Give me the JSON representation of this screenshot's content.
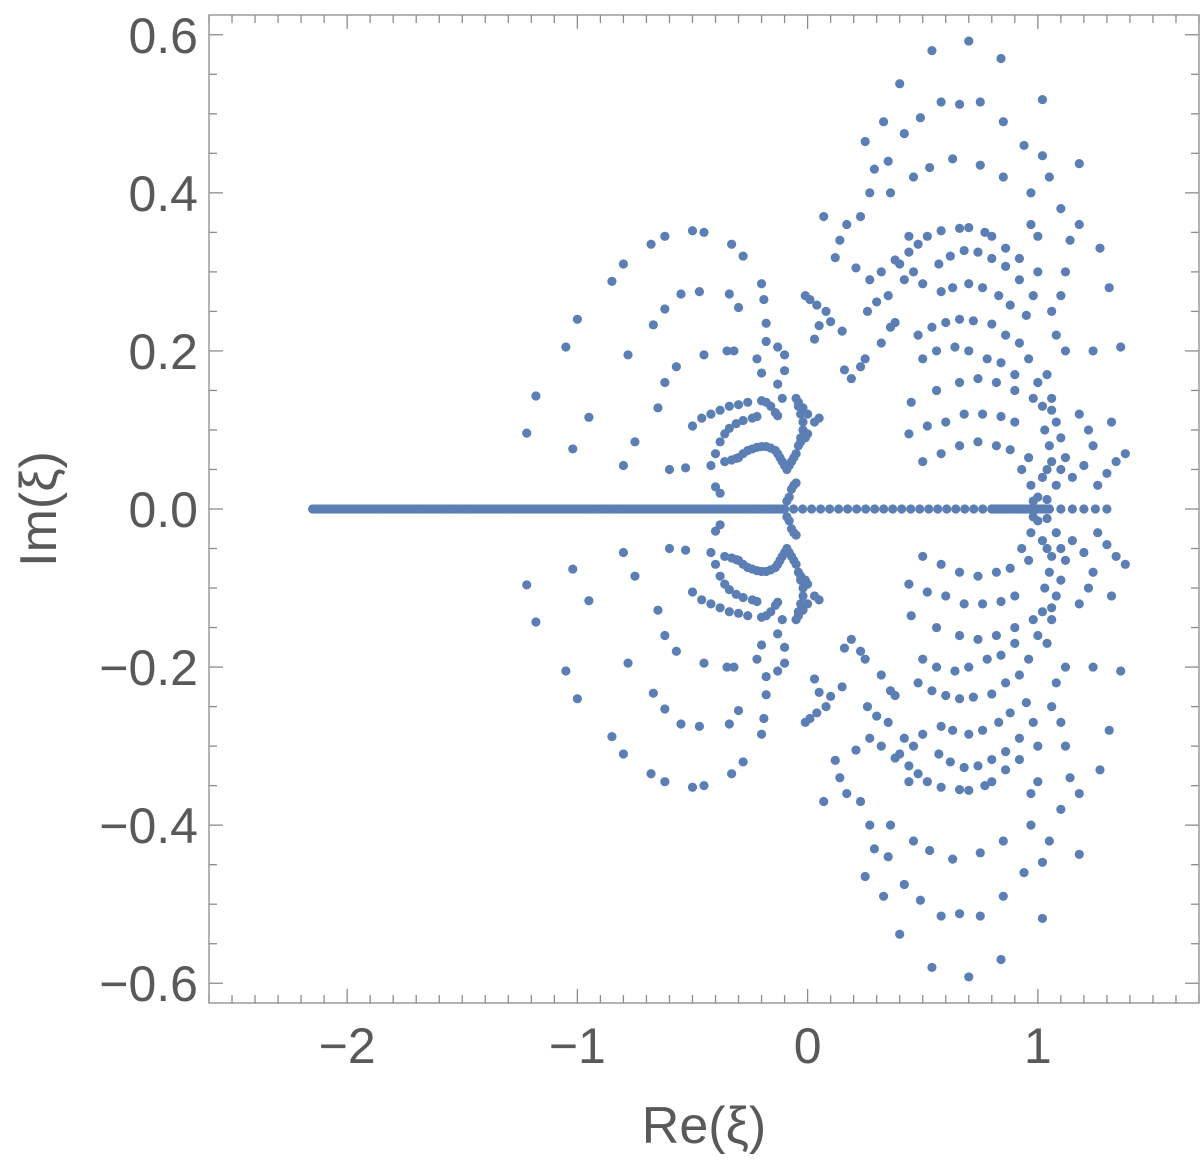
{
  "chart_data": {
    "type": "scatter",
    "xlabel": "Re(ξ)",
    "ylabel": "Im(ξ)",
    "xlim": [
      -2.6,
      1.7
    ],
    "ylim": [
      -0.625,
      0.625
    ],
    "xticks": [
      -2,
      -1,
      0,
      1
    ],
    "xtick_labels": [
      "−2",
      "−1",
      "0",
      "1"
    ],
    "yticks": [
      -0.6,
      -0.4,
      -0.2,
      0.0,
      0.2,
      0.4,
      0.6
    ],
    "ytick_labels": [
      "−0.6",
      "−0.4",
      "−0.2",
      "0.0",
      "0.2",
      "0.4",
      "0.6"
    ],
    "grid": false,
    "legend": false,
    "point_color": "#5b7fb5",
    "real_axis_points": {
      "dense_from": -2.15,
      "dense_to": -0.1,
      "dense_count": 150,
      "sparse_from": -0.1,
      "sparse_to": 0.8,
      "sparse_count": 24,
      "dense2_from": 0.8,
      "dense2_to": 1.05,
      "dense2_count": 26,
      "tail_from": 1.05,
      "tail_to": 1.3,
      "tail_count": 6
    },
    "upper_points": [
      [
        -1.22,
        0.096
      ],
      [
        -1.18,
        0.143
      ],
      [
        -1.05,
        0.205
      ],
      [
        -1.0,
        0.24
      ],
      [
        -0.95,
        0.116
      ],
      [
        -1.02,
        0.076
      ],
      [
        -0.85,
        0.288
      ],
      [
        -0.8,
        0.31
      ],
      [
        -0.78,
        0.195
      ],
      [
        -0.75,
        0.085
      ],
      [
        -0.8,
        0.055
      ],
      [
        -0.68,
        0.335
      ],
      [
        -0.62,
        0.345
      ],
      [
        -0.5,
        0.352
      ],
      [
        -0.45,
        0.35
      ],
      [
        -0.33,
        0.335
      ],
      [
        -0.28,
        0.32
      ],
      [
        -0.67,
        0.233
      ],
      [
        -0.62,
        0.253
      ],
      [
        -0.55,
        0.272
      ],
      [
        -0.47,
        0.275
      ],
      [
        -0.34,
        0.272
      ],
      [
        -0.3,
        0.255
      ],
      [
        -0.2,
        0.285
      ],
      [
        -0.19,
        0.265
      ],
      [
        -0.18,
        0.235
      ],
      [
        -0.18,
        0.212
      ],
      [
        -0.65,
        0.128
      ],
      [
        -0.62,
        0.16
      ],
      [
        -0.57,
        0.18
      ],
      [
        -0.53,
        0.052
      ],
      [
        -0.6,
        0.05
      ],
      [
        -0.45,
        0.195
      ],
      [
        -0.35,
        0.2
      ],
      [
        -0.32,
        0.2
      ],
      [
        -0.22,
        0.19
      ],
      [
        -0.2,
        0.172
      ],
      [
        -0.13,
        0.205
      ],
      [
        -0.1,
        0.195
      ],
      [
        -0.1,
        0.175
      ],
      [
        -0.13,
        0.158
      ],
      [
        -0.11,
        0.14
      ],
      [
        -0.5,
        0.105
      ],
      [
        -0.46,
        0.115
      ],
      [
        -0.42,
        0.12
      ],
      [
        -0.38,
        0.125
      ],
      [
        -0.34,
        0.13
      ],
      [
        -0.3,
        0.132
      ],
      [
        -0.26,
        0.135
      ],
      [
        -0.2,
        0.137
      ],
      [
        -0.18,
        0.135
      ],
      [
        -0.16,
        0.13
      ],
      [
        -0.14,
        0.122
      ],
      [
        -0.13,
        0.118
      ],
      [
        -0.4,
        0.07
      ],
      [
        -0.38,
        0.085
      ],
      [
        -0.36,
        0.095
      ],
      [
        -0.34,
        0.102
      ],
      [
        -0.31,
        0.108
      ],
      [
        -0.28,
        0.112
      ],
      [
        -0.24,
        0.115
      ],
      [
        -0.22,
        0.117
      ],
      [
        -0.42,
        0.055
      ],
      [
        -0.4,
        0.028
      ],
      [
        -0.38,
        0.02
      ],
      [
        -0.3,
        0.065
      ],
      [
        -0.28,
        0.07
      ],
      [
        -0.26,
        0.074
      ],
      [
        -0.24,
        0.076
      ],
      [
        -0.22,
        0.078
      ],
      [
        -0.2,
        0.079
      ],
      [
        -0.18,
        0.079
      ],
      [
        -0.16,
        0.077
      ],
      [
        -0.14,
        0.074
      ],
      [
        -0.36,
        0.06
      ],
      [
        -0.33,
        0.062
      ],
      [
        -0.31,
        0.064
      ],
      [
        -0.13,
        0.07
      ],
      [
        -0.12,
        0.065
      ],
      [
        -0.11,
        0.06
      ],
      [
        -0.1,
        0.055
      ],
      [
        -0.09,
        0.05
      ],
      [
        -0.08,
        0.055
      ],
      [
        -0.07,
        0.06
      ],
      [
        -0.06,
        0.065
      ],
      [
        -0.05,
        0.07
      ],
      [
        -0.04,
        0.08
      ],
      [
        -0.03,
        0.09
      ],
      [
        -0.02,
        0.1
      ],
      [
        -0.02,
        0.11
      ],
      [
        -0.03,
        0.12
      ],
      [
        -0.04,
        0.13
      ],
      [
        -0.05,
        0.14
      ],
      [
        -0.07,
        0.025
      ],
      [
        -0.06,
        0.03
      ],
      [
        -0.05,
        0.033
      ],
      [
        -0.08,
        0.015
      ],
      [
        -0.09,
        0.01
      ],
      [
        -0.04,
        0.135
      ],
      [
        -0.02,
        0.128
      ],
      [
        0.0,
        0.12
      ],
      [
        0.03,
        0.11
      ],
      [
        0.05,
        0.115
      ],
      [
        -0.03,
        0.085
      ],
      [
        -0.01,
        0.09
      ],
      [
        0.0,
        0.095
      ],
      [
        0.04,
        0.258
      ],
      [
        0.08,
        0.25
      ],
      [
        0.1,
        0.237
      ],
      [
        0.15,
        0.225
      ],
      [
        0.03,
        0.215
      ],
      [
        0.05,
        0.232
      ],
      [
        0.07,
        0.37
      ],
      [
        0.14,
        0.34
      ],
      [
        0.17,
        0.36
      ],
      [
        0.21,
        0.305
      ],
      [
        0.12,
        0.318
      ],
      [
        -0.01,
        0.27
      ],
      [
        0.01,
        0.265
      ],
      [
        0.19,
        0.165
      ],
      [
        0.16,
        0.176
      ],
      [
        0.23,
        0.18
      ],
      [
        0.25,
        0.19
      ],
      [
        0.32,
        0.21
      ],
      [
        0.36,
        0.23
      ],
      [
        0.38,
        0.236
      ],
      [
        0.26,
        0.25
      ],
      [
        0.3,
        0.262
      ],
      [
        0.35,
        0.27
      ],
      [
        0.42,
        0.29
      ],
      [
        0.46,
        0.3
      ],
      [
        0.27,
        0.29
      ],
      [
        0.32,
        0.3
      ],
      [
        0.4,
        0.31
      ],
      [
        0.44,
        0.325
      ],
      [
        0.48,
        0.335
      ],
      [
        0.23,
        0.37
      ],
      [
        0.27,
        0.4
      ],
      [
        0.29,
        0.43
      ],
      [
        0.35,
        0.44
      ],
      [
        0.42,
        0.475
      ],
      [
        0.49,
        0.495
      ],
      [
        0.58,
        0.515
      ],
      [
        0.66,
        0.512
      ],
      [
        0.75,
        0.515
      ],
      [
        0.85,
        0.49
      ],
      [
        0.94,
        0.46
      ],
      [
        1.02,
        0.447
      ],
      [
        0.25,
        0.465
      ],
      [
        0.33,
        0.49
      ],
      [
        0.4,
        0.538
      ],
      [
        0.54,
        0.58
      ],
      [
        0.7,
        0.592
      ],
      [
        0.84,
        0.57
      ],
      [
        1.02,
        0.518
      ],
      [
        0.36,
        0.4
      ],
      [
        0.46,
        0.42
      ],
      [
        0.53,
        0.432
      ],
      [
        0.63,
        0.443
      ],
      [
        0.75,
        0.435
      ],
      [
        0.85,
        0.42
      ],
      [
        0.97,
        0.4
      ],
      [
        1.05,
        0.42
      ],
      [
        1.18,
        0.437
      ],
      [
        0.38,
        0.315
      ],
      [
        0.44,
        0.345
      ],
      [
        0.52,
        0.345
      ],
      [
        0.58,
        0.352
      ],
      [
        0.66,
        0.355
      ],
      [
        0.7,
        0.356
      ],
      [
        0.77,
        0.35
      ],
      [
        0.8,
        0.345
      ],
      [
        0.86,
        0.33
      ],
      [
        0.92,
        0.317
      ],
      [
        0.5,
        0.285
      ],
      [
        0.57,
        0.31
      ],
      [
        0.62,
        0.32
      ],
      [
        0.68,
        0.327
      ],
      [
        0.74,
        0.325
      ],
      [
        0.8,
        0.317
      ],
      [
        0.86,
        0.307
      ],
      [
        0.92,
        0.29
      ],
      [
        0.58,
        0.275
      ],
      [
        0.63,
        0.28
      ],
      [
        0.7,
        0.285
      ],
      [
        0.76,
        0.28
      ],
      [
        0.83,
        0.27
      ],
      [
        0.88,
        0.258
      ],
      [
        0.95,
        0.245
      ],
      [
        0.48,
        0.22
      ],
      [
        0.54,
        0.23
      ],
      [
        0.6,
        0.236
      ],
      [
        0.66,
        0.24
      ],
      [
        0.72,
        0.238
      ],
      [
        0.8,
        0.234
      ],
      [
        0.86,
        0.22
      ],
      [
        0.92,
        0.21
      ],
      [
        0.5,
        0.19
      ],
      [
        0.56,
        0.2
      ],
      [
        0.64,
        0.205
      ],
      [
        0.7,
        0.2
      ],
      [
        0.78,
        0.19
      ],
      [
        0.84,
        0.185
      ],
      [
        0.9,
        0.17
      ],
      [
        0.45,
        0.135
      ],
      [
        0.56,
        0.15
      ],
      [
        0.66,
        0.16
      ],
      [
        0.74,
        0.165
      ],
      [
        0.82,
        0.16
      ],
      [
        0.9,
        0.15
      ],
      [
        0.98,
        0.14
      ],
      [
        0.44,
        0.095
      ],
      [
        0.52,
        0.105
      ],
      [
        0.6,
        0.11
      ],
      [
        0.68,
        0.12
      ],
      [
        0.76,
        0.12
      ],
      [
        0.84,
        0.117
      ],
      [
        0.9,
        0.11
      ],
      [
        0.5,
        0.06
      ],
      [
        0.58,
        0.07
      ],
      [
        0.66,
        0.08
      ],
      [
        0.74,
        0.085
      ],
      [
        0.82,
        0.08
      ],
      [
        0.88,
        0.075
      ],
      [
        0.96,
        0.065
      ],
      [
        0.96,
        0.19
      ],
      [
        0.98,
        0.27
      ],
      [
        1.0,
        0.3
      ],
      [
        1.0,
        0.345
      ],
      [
        0.97,
        0.36
      ],
      [
        1.02,
        0.04
      ],
      [
        1.04,
        0.05
      ],
      [
        1.06,
        0.06
      ],
      [
        1.05,
        0.08
      ],
      [
        1.03,
        0.1
      ],
      [
        1.02,
        0.13
      ],
      [
        1.0,
        0.16
      ],
      [
        1.04,
        0.17
      ],
      [
        1.06,
        0.14
      ],
      [
        1.08,
        0.03
      ],
      [
        1.1,
        0.05
      ],
      [
        1.12,
        0.065
      ],
      [
        1.1,
        0.09
      ],
      [
        1.08,
        0.11
      ],
      [
        1.06,
        0.125
      ],
      [
        1.12,
        0.2
      ],
      [
        1.08,
        0.22
      ],
      [
        1.06,
        0.25
      ],
      [
        1.1,
        0.27
      ],
      [
        1.12,
        0.3
      ],
      [
        1.1,
        0.38
      ],
      [
        1.14,
        0.34
      ],
      [
        1.18,
        0.36
      ],
      [
        1.18,
        0.12
      ],
      [
        1.22,
        0.1
      ],
      [
        1.24,
        0.08
      ],
      [
        1.2,
        0.055
      ],
      [
        1.15,
        0.04
      ],
      [
        1.26,
        0.03
      ],
      [
        1.3,
        0.045
      ],
      [
        1.34,
        0.06
      ],
      [
        1.38,
        0.07
      ],
      [
        1.32,
        0.11
      ],
      [
        1.24,
        0.2
      ],
      [
        1.27,
        0.33
      ],
      [
        1.31,
        0.28
      ],
      [
        1.36,
        0.205
      ],
      [
        0.93,
        0.05
      ],
      [
        0.97,
        0.03
      ],
      [
        1.0,
        0.015
      ],
      [
        0.98,
        0.01
      ],
      [
        1.04,
        0.012
      ]
    ]
  }
}
